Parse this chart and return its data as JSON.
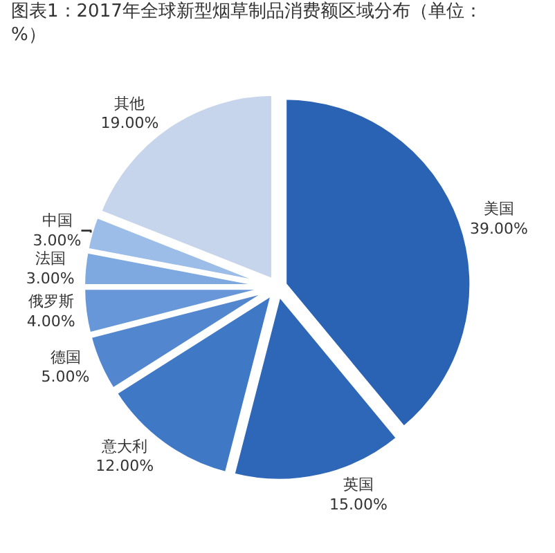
{
  "chart_data": {
    "type": "pie",
    "title": "图表1：2017年全球新型烟草制品消费额区域分布（单位：%）",
    "categories": [
      "美国",
      "英国",
      "意大利",
      "德国",
      "俄罗斯",
      "法国",
      "中国",
      "其他"
    ],
    "values": [
      39,
      15,
      12,
      5,
      4,
      3,
      3,
      19
    ],
    "value_labels": [
      "39.00%",
      "15.00%",
      "12.00%",
      "5.00%",
      "4.00%",
      "3.00%",
      "3.00%",
      "19.00%"
    ],
    "colors": [
      "#2a62b4",
      "#2e67b8",
      "#3f78c4",
      "#5287cf",
      "#6797d8",
      "#7ea9e0",
      "#9bbde8",
      "#c6d5ec"
    ],
    "legend": false
  }
}
